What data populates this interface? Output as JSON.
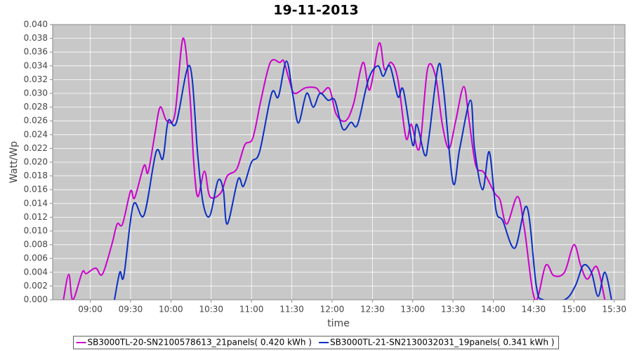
{
  "chart_data": {
    "type": "line",
    "title": "19-11-2013",
    "x_label": "time",
    "y_label": "Watt/Wp",
    "xlim": [
      "08:32",
      "15:38"
    ],
    "xticks": [
      "09:00",
      "09:30",
      "10:00",
      "10:30",
      "11:00",
      "11:30",
      "12:00",
      "12:30",
      "13:00",
      "13:30",
      "14:00",
      "14:30",
      "15:00",
      "15:30"
    ],
    "ylim": [
      0,
      0.04
    ],
    "yticks": [
      {
        "value": 0,
        "label": "0.000"
      },
      {
        "value": 0.002,
        "label": "0.002"
      },
      {
        "value": 0.004,
        "label": "0.004"
      },
      {
        "value": 0.006,
        "label": "0.006"
      },
      {
        "value": 0.008,
        "label": "0.008"
      },
      {
        "value": 0.01,
        "label": "0.010"
      },
      {
        "value": 0.012,
        "label": "0.012"
      },
      {
        "value": 0.014,
        "label": "0.014"
      },
      {
        "value": 0.016,
        "label": "0.016"
      },
      {
        "value": 0.018,
        "label": "0.018"
      },
      {
        "value": 0.02,
        "label": "0.020"
      },
      {
        "value": 0.022,
        "label": "0.022"
      },
      {
        "value": 0.024,
        "label": "0.024"
      },
      {
        "value": 0.026,
        "label": "0.026"
      },
      {
        "value": 0.028,
        "label": "0.028"
      },
      {
        "value": 0.03,
        "label": "0.030"
      },
      {
        "value": 0.032,
        "label": "0.032"
      },
      {
        "value": 0.034,
        "label": "0.034"
      },
      {
        "value": 0.036,
        "label": "0.036"
      },
      {
        "value": 0.038,
        "label": "0.038"
      },
      {
        "value": 0.04,
        "label": "0.040"
      }
    ],
    "grid": true,
    "legend": "bottom",
    "series": [
      {
        "name": "SB3000TL-20-SN2100578613_21panels( 0.420 kWh )",
        "color": "#cc00cc",
        "x": [
          "08:40",
          "08:44",
          "08:47",
          "08:54",
          "08:57",
          "09:04",
          "09:09",
          "09:16",
          "09:20",
          "09:24",
          "09:30",
          "09:33",
          "09:40",
          "09:43",
          "09:48",
          "09:52",
          "09:57",
          "10:03",
          "10:09",
          "10:14",
          "10:17",
          "10:20",
          "10:25",
          "10:29",
          "10:37",
          "10:42",
          "10:49",
          "10:55",
          "11:01",
          "11:07",
          "11:14",
          "11:21",
          "11:24",
          "11:28",
          "11:32",
          "11:40",
          "11:48",
          "11:52",
          "11:58",
          "12:03",
          "12:10",
          "12:16",
          "12:23",
          "12:28",
          "12:35",
          "12:39",
          "12:44",
          "12:49",
          "12:55",
          "12:59",
          "13:05",
          "13:11",
          "13:17",
          "13:22",
          "13:27",
          "13:32",
          "13:38",
          "13:42",
          "13:47",
          "13:53",
          "14:01",
          "14:05",
          "14:10",
          "14:18",
          "14:23",
          "14:31",
          "14:39",
          "14:45",
          "14:53",
          "15:00",
          "15:05",
          "15:10",
          "15:17",
          "15:23"
        ],
        "values": [
          0,
          0.0037,
          0,
          0.004,
          0.0038,
          0.0046,
          0.0037,
          0.008,
          0.011,
          0.011,
          0.0158,
          0.0148,
          0.0195,
          0.0185,
          0.024,
          0.028,
          0.026,
          0.027,
          0.038,
          0.03,
          0.02,
          0.015,
          0.0187,
          0.015,
          0.0155,
          0.018,
          0.019,
          0.0225,
          0.0235,
          0.029,
          0.0345,
          0.0345,
          0.0347,
          0.032,
          0.03,
          0.0308,
          0.0308,
          0.03,
          0.0307,
          0.027,
          0.026,
          0.0285,
          0.0345,
          0.0305,
          0.0373,
          0.0335,
          0.0345,
          0.032,
          0.0235,
          0.0255,
          0.022,
          0.0335,
          0.0325,
          0.0255,
          0.022,
          0.026,
          0.031,
          0.026,
          0.0195,
          0.0185,
          0.0155,
          0.0145,
          0.011,
          0.015,
          0.0105,
          0,
          0.005,
          0.0035,
          0.004,
          0.008,
          0.005,
          0.003,
          0.0048,
          0
        ]
      },
      {
        "name": "SB3000TL-21-SN2130032031_19panels( 0.341 kWh )",
        "color": "#0a2fc4",
        "x": [
          "09:18",
          "09:22",
          "09:25",
          "09:32",
          "09:40",
          "09:49",
          "09:54",
          "09:58",
          "10:04",
          "10:14",
          "10:20",
          "10:24",
          "10:29",
          "10:35",
          "10:39",
          "10:42",
          "10:50",
          "10:54",
          "11:00",
          "11:06",
          "11:15",
          "11:20",
          "11:26",
          "11:31",
          "11:35",
          "11:41",
          "11:46",
          "11:51",
          "11:57",
          "12:02",
          "12:08",
          "12:14",
          "12:19",
          "12:27",
          "12:34",
          "12:38",
          "12:43",
          "12:49",
          "12:53",
          "13:00",
          "13:03",
          "13:09",
          "13:12",
          "13:19",
          "13:23",
          "13:30",
          "13:35",
          "13:43",
          "13:46",
          "13:52",
          "13:57",
          "14:02",
          "14:07",
          "14:16",
          "14:25",
          "14:32",
          "14:37",
          "14:53",
          "15:01",
          "15:07",
          "15:13",
          "15:18",
          "15:23",
          "15:28"
        ],
        "values": [
          0,
          0.004,
          0.0035,
          0.0138,
          0.0123,
          0.0215,
          0.0205,
          0.026,
          0.0257,
          0.034,
          0.021,
          0.014,
          0.0122,
          0.0173,
          0.016,
          0.011,
          0.0175,
          0.0165,
          0.02,
          0.0215,
          0.03,
          0.0295,
          0.0347,
          0.0295,
          0.0257,
          0.03,
          0.028,
          0.03,
          0.029,
          0.029,
          0.0248,
          0.0258,
          0.0255,
          0.032,
          0.034,
          0.0325,
          0.034,
          0.0295,
          0.0305,
          0.0225,
          0.0255,
          0.021,
          0.0235,
          0.034,
          0.0305,
          0.017,
          0.022,
          0.029,
          0.022,
          0.016,
          0.0215,
          0.013,
          0.0115,
          0.0075,
          0.0135,
          0.002,
          0,
          0,
          0.002,
          0.005,
          0.004,
          0.0005,
          0.004,
          0
        ]
      }
    ]
  }
}
